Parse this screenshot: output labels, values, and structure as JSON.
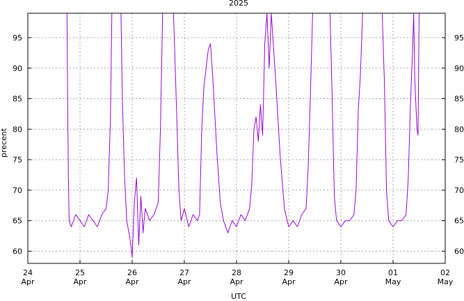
{
  "chart_data": {
    "type": "line",
    "title": "2025",
    "xlabel": "UTC",
    "ylabel": "precent",
    "ylim": [
      58,
      99
    ],
    "xlim_days": [
      "2025-04-24",
      "2025-05-02"
    ],
    "grid": true,
    "y_ticks": [
      60,
      65,
      70,
      75,
      80,
      85,
      90,
      95
    ],
    "y_ticks_right": true,
    "x_ticks": [
      {
        "date": "2025-04-24",
        "day": "24",
        "month": "Apr"
      },
      {
        "date": "2025-04-25",
        "day": "25",
        "month": "Apr"
      },
      {
        "date": "2025-04-26",
        "day": "26",
        "month": "Apr"
      },
      {
        "date": "2025-04-27",
        "day": "27",
        "month": "Apr"
      },
      {
        "date": "2025-04-28",
        "day": "28",
        "month": "Apr"
      },
      {
        "date": "2025-04-29",
        "day": "29",
        "month": "Apr"
      },
      {
        "date": "2025-04-30",
        "day": "30",
        "month": "Apr"
      },
      {
        "date": "2025-05-01",
        "day": "01",
        "month": "May"
      },
      {
        "date": "2025-05-02",
        "day": "02",
        "month": "May"
      }
    ],
    "series": [
      {
        "color": "#9400d3",
        "points": [
          [
            "2025-04-24T18:00",
            99
          ],
          [
            "2025-04-24T18:10",
            91
          ],
          [
            "2025-04-24T18:20",
            84
          ],
          [
            "2025-04-24T18:40",
            72
          ],
          [
            "2025-04-24T19:00",
            65
          ],
          [
            "2025-04-24T20:00",
            64
          ],
          [
            "2025-04-24T22:00",
            66
          ],
          [
            "2025-04-25T00:00",
            65
          ],
          [
            "2025-04-25T02:00",
            64
          ],
          [
            "2025-04-25T04:00",
            66
          ],
          [
            "2025-04-25T06:00",
            65
          ],
          [
            "2025-04-25T08:00",
            64
          ],
          [
            "2025-04-25T10:00",
            66
          ],
          [
            "2025-04-25T12:00",
            67
          ],
          [
            "2025-04-25T13:00",
            70
          ],
          [
            "2025-04-25T14:00",
            82
          ],
          [
            "2025-04-25T14:40",
            99
          ],
          [
            "2025-04-25T18:50",
            99
          ],
          [
            "2025-04-25T19:30",
            85
          ],
          [
            "2025-04-25T20:30",
            72
          ],
          [
            "2025-04-25T21:30",
            65
          ],
          [
            "2025-04-25T23:00",
            62
          ],
          [
            "2025-04-26T00:00",
            59
          ],
          [
            "2025-04-26T01:00",
            68
          ],
          [
            "2025-04-26T02:00",
            72
          ],
          [
            "2025-04-26T03:00",
            61
          ],
          [
            "2025-04-26T04:00",
            69
          ],
          [
            "2025-04-26T05:00",
            63
          ],
          [
            "2025-04-26T06:00",
            67
          ],
          [
            "2025-04-26T08:00",
            65
          ],
          [
            "2025-04-26T10:00",
            66
          ],
          [
            "2025-04-26T12:00",
            68
          ],
          [
            "2025-04-26T13:00",
            80
          ],
          [
            "2025-04-26T14:00",
            99
          ],
          [
            "2025-04-26T19:00",
            99
          ],
          [
            "2025-04-26T20:00",
            88
          ],
          [
            "2025-04-26T21:30",
            70
          ],
          [
            "2025-04-26T22:30",
            65
          ],
          [
            "2025-04-27T00:00",
            67
          ],
          [
            "2025-04-27T02:00",
            64
          ],
          [
            "2025-04-27T04:00",
            66
          ],
          [
            "2025-04-27T06:00",
            65
          ],
          [
            "2025-04-27T07:00",
            66
          ],
          [
            "2025-04-27T08:00",
            80
          ],
          [
            "2025-04-27T09:00",
            87
          ],
          [
            "2025-04-27T10:00",
            90
          ],
          [
            "2025-04-27T11:00",
            93
          ],
          [
            "2025-04-27T12:00",
            94
          ],
          [
            "2025-04-27T13:00",
            89
          ],
          [
            "2025-04-27T15:00",
            76
          ],
          [
            "2025-04-27T16:30",
            68
          ],
          [
            "2025-04-27T18:00",
            65
          ],
          [
            "2025-04-27T20:00",
            63
          ],
          [
            "2025-04-27T22:00",
            65
          ],
          [
            "2025-04-28T00:00",
            64
          ],
          [
            "2025-04-28T02:00",
            66
          ],
          [
            "2025-04-28T04:00",
            65
          ],
          [
            "2025-04-28T06:00",
            67
          ],
          [
            "2025-04-28T07:00",
            71
          ],
          [
            "2025-04-28T08:00",
            80
          ],
          [
            "2025-04-28T09:00",
            82
          ],
          [
            "2025-04-28T10:00",
            78
          ],
          [
            "2025-04-28T11:00",
            84
          ],
          [
            "2025-04-28T12:00",
            79
          ],
          [
            "2025-04-28T13:00",
            94
          ],
          [
            "2025-04-28T14:00",
            99
          ],
          [
            "2025-04-28T15:00",
            90
          ],
          [
            "2025-04-28T16:00",
            99
          ],
          [
            "2025-04-28T18:00",
            88
          ],
          [
            "2025-04-28T20:00",
            76
          ],
          [
            "2025-04-28T22:00",
            67
          ],
          [
            "2025-04-29T00:00",
            64
          ],
          [
            "2025-04-29T02:00",
            65
          ],
          [
            "2025-04-29T04:00",
            64
          ],
          [
            "2025-04-29T06:00",
            66
          ],
          [
            "2025-04-29T08:00",
            67
          ],
          [
            "2025-04-29T09:00",
            74
          ],
          [
            "2025-04-29T10:00",
            86
          ],
          [
            "2025-04-29T11:00",
            99
          ],
          [
            "2025-04-29T19:00",
            99
          ],
          [
            "2025-04-29T20:00",
            85
          ],
          [
            "2025-04-29T21:00",
            69
          ],
          [
            "2025-04-29T22:00",
            65
          ],
          [
            "2025-04-30T00:00",
            64
          ],
          [
            "2025-04-30T02:00",
            65
          ],
          [
            "2025-04-30T04:00",
            65
          ],
          [
            "2025-04-30T06:00",
            66
          ],
          [
            "2025-04-30T07:00",
            70
          ],
          [
            "2025-04-30T08:00",
            83
          ],
          [
            "2025-04-30T09:00",
            89
          ],
          [
            "2025-04-30T10:00",
            99
          ],
          [
            "2025-04-30T19:00",
            99
          ],
          [
            "2025-04-30T20:00",
            88
          ],
          [
            "2025-04-30T21:00",
            70
          ],
          [
            "2025-04-30T22:00",
            65
          ],
          [
            "2025-05-01T00:00",
            64
          ],
          [
            "2025-05-01T02:00",
            65
          ],
          [
            "2025-05-01T04:00",
            65
          ],
          [
            "2025-05-01T06:00",
            66
          ],
          [
            "2025-05-01T07:00",
            72
          ],
          [
            "2025-05-01T08:00",
            84
          ],
          [
            "2025-05-01T09:00",
            93
          ],
          [
            "2025-05-01T09:30",
            99
          ],
          [
            "2025-05-01T10:00",
            88
          ],
          [
            "2025-05-01T11:00",
            80
          ],
          [
            "2025-05-01T11:30",
            79
          ],
          [
            "2025-05-01T12:00",
            99
          ]
        ]
      }
    ]
  }
}
